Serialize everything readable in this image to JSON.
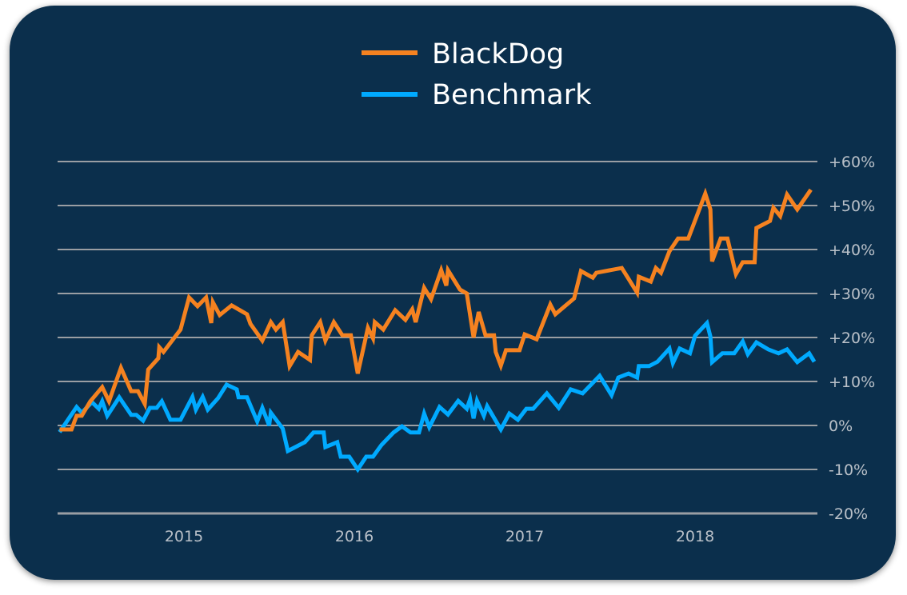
{
  "chart_data": {
    "type": "line",
    "title": "",
    "xlabel": "",
    "ylabel": "",
    "ylim": [
      -20,
      60
    ],
    "xlim": [
      2014.27,
      2018.7
    ],
    "grid": true,
    "legend_placement": "top-center",
    "y_ticks": [
      {
        "value": 60,
        "label": "+60%"
      },
      {
        "value": 50,
        "label": "+50%"
      },
      {
        "value": 40,
        "label": "+40%"
      },
      {
        "value": 30,
        "label": "+30%"
      },
      {
        "value": 20,
        "label": "+20%"
      },
      {
        "value": 10,
        "label": "+10%"
      },
      {
        "value": 0,
        "label": "0%"
      },
      {
        "value": -10,
        "label": "-10%"
      },
      {
        "value": -20,
        "label": "-20%"
      }
    ],
    "x_ticks": [
      {
        "value": 2015,
        "label": "2015"
      },
      {
        "value": 2016,
        "label": "2016"
      },
      {
        "value": 2017,
        "label": "2017"
      },
      {
        "value": 2018,
        "label": "2018"
      }
    ],
    "series": [
      {
        "name": "BlackDog",
        "color": "#f58220",
        "points": [
          [
            2014.27,
            -0.9
          ],
          [
            2014.34,
            -0.9
          ],
          [
            2014.37,
            2.2
          ],
          [
            2014.4,
            2.2
          ],
          [
            2014.45,
            5.5
          ],
          [
            2014.52,
            8.7
          ],
          [
            2014.56,
            5.5
          ],
          [
            2014.63,
            13.1
          ],
          [
            2014.69,
            7.8
          ],
          [
            2014.73,
            7.8
          ],
          [
            2014.77,
            4.9
          ],
          [
            2014.79,
            12.7
          ],
          [
            2014.85,
            15.3
          ],
          [
            2014.855,
            17.8
          ],
          [
            2014.88,
            16.7
          ],
          [
            2014.98,
            21.8
          ],
          [
            2015.03,
            29.1
          ],
          [
            2015.08,
            27.1
          ],
          [
            2015.13,
            29.1
          ],
          [
            2015.16,
            23.3
          ],
          [
            2015.17,
            28.0
          ],
          [
            2015.21,
            25.1
          ],
          [
            2015.28,
            27.3
          ],
          [
            2015.37,
            25.3
          ],
          [
            2015.39,
            23.1
          ],
          [
            2015.46,
            19.3
          ],
          [
            2015.51,
            23.5
          ],
          [
            2015.54,
            21.8
          ],
          [
            2015.58,
            23.5
          ],
          [
            2015.62,
            13.5
          ],
          [
            2015.67,
            16.7
          ],
          [
            2015.74,
            14.9
          ],
          [
            2015.75,
            20.5
          ],
          [
            2015.8,
            23.5
          ],
          [
            2015.83,
            19.3
          ],
          [
            2015.88,
            23.5
          ],
          [
            2015.93,
            20.5
          ],
          [
            2015.98,
            20.5
          ],
          [
            2016.02,
            11.8
          ],
          [
            2016.08,
            22.2
          ],
          [
            2016.11,
            19.8
          ],
          [
            2016.12,
            23.5
          ],
          [
            2016.17,
            21.8
          ],
          [
            2016.24,
            26.2
          ],
          [
            2016.3,
            24.0
          ],
          [
            2016.34,
            26.4
          ],
          [
            2016.36,
            23.5
          ],
          [
            2016.41,
            31.3
          ],
          [
            2016.45,
            28.7
          ],
          [
            2016.51,
            35.3
          ],
          [
            2016.54,
            31.8
          ],
          [
            2016.55,
            35.3
          ],
          [
            2016.62,
            30.9
          ],
          [
            2016.66,
            30.0
          ],
          [
            2016.7,
            20.0
          ],
          [
            2016.73,
            25.8
          ],
          [
            2016.77,
            20.5
          ],
          [
            2016.82,
            20.5
          ],
          [
            2016.83,
            16.7
          ],
          [
            2016.86,
            13.6
          ],
          [
            2016.89,
            17.1
          ],
          [
            2016.97,
            17.1
          ],
          [
            2017.0,
            20.7
          ],
          [
            2017.07,
            19.6
          ],
          [
            2017.15,
            27.5
          ],
          [
            2017.18,
            25.3
          ],
          [
            2017.29,
            28.9
          ],
          [
            2017.33,
            35.1
          ],
          [
            2017.4,
            33.6
          ],
          [
            2017.42,
            34.7
          ],
          [
            2017.57,
            35.8
          ],
          [
            2017.66,
            30.2
          ],
          [
            2017.67,
            33.8
          ],
          [
            2017.74,
            32.7
          ],
          [
            2017.77,
            35.8
          ],
          [
            2017.8,
            34.7
          ],
          [
            2017.85,
            39.6
          ],
          [
            2017.9,
            42.5
          ],
          [
            2017.96,
            42.5
          ],
          [
            2018.06,
            52.7
          ],
          [
            2018.09,
            49.1
          ],
          [
            2018.1,
            37.3
          ],
          [
            2018.15,
            42.5
          ],
          [
            2018.19,
            42.5
          ],
          [
            2018.24,
            34.4
          ],
          [
            2018.28,
            37.1
          ],
          [
            2018.35,
            37.1
          ],
          [
            2018.36,
            44.9
          ],
          [
            2018.44,
            46.5
          ],
          [
            2018.46,
            49.5
          ],
          [
            2018.5,
            47.6
          ],
          [
            2018.54,
            52.5
          ],
          [
            2018.6,
            49.1
          ],
          [
            2018.68,
            53.6
          ]
        ]
      },
      {
        "name": "Benchmark",
        "color": "#00aaff",
        "points": [
          [
            2014.27,
            -1.5
          ],
          [
            2014.37,
            4.2
          ],
          [
            2014.4,
            2.9
          ],
          [
            2014.46,
            5.3
          ],
          [
            2014.5,
            3.8
          ],
          [
            2014.52,
            5.5
          ],
          [
            2014.55,
            2.2
          ],
          [
            2014.62,
            6.4
          ],
          [
            2014.69,
            2.4
          ],
          [
            2014.72,
            2.4
          ],
          [
            2014.76,
            1.1
          ],
          [
            2014.8,
            4.0
          ],
          [
            2014.84,
            4.0
          ],
          [
            2014.87,
            5.5
          ],
          [
            2014.92,
            1.3
          ],
          [
            2014.98,
            1.3
          ],
          [
            2015.05,
            6.5
          ],
          [
            2015.07,
            3.6
          ],
          [
            2015.11,
            6.5
          ],
          [
            2015.14,
            3.6
          ],
          [
            2015.2,
            6.2
          ],
          [
            2015.25,
            9.3
          ],
          [
            2015.31,
            8.2
          ],
          [
            2015.32,
            6.4
          ],
          [
            2015.37,
            6.4
          ],
          [
            2015.43,
            0.9
          ],
          [
            2015.46,
            4.0
          ],
          [
            2015.5,
            0.0
          ],
          [
            2015.51,
            2.9
          ],
          [
            2015.58,
            -0.7
          ],
          [
            2015.61,
            -5.8
          ],
          [
            2015.71,
            -3.8
          ],
          [
            2015.76,
            -1.6
          ],
          [
            2015.82,
            -1.6
          ],
          [
            2015.83,
            -4.9
          ],
          [
            2015.9,
            -3.8
          ],
          [
            2015.92,
            -7.1
          ],
          [
            2015.97,
            -7.1
          ],
          [
            2016.02,
            -10.0
          ],
          [
            2016.07,
            -7.1
          ],
          [
            2016.11,
            -7.1
          ],
          [
            2016.16,
            -4.4
          ],
          [
            2016.23,
            -1.6
          ],
          [
            2016.28,
            -0.2
          ],
          [
            2016.33,
            -1.6
          ],
          [
            2016.38,
            -1.6
          ],
          [
            2016.41,
            2.7
          ],
          [
            2016.44,
            -0.4
          ],
          [
            2016.5,
            4.2
          ],
          [
            2016.55,
            2.5
          ],
          [
            2016.61,
            5.6
          ],
          [
            2016.66,
            3.8
          ],
          [
            2016.68,
            6.0
          ],
          [
            2016.7,
            1.6
          ],
          [
            2016.72,
            5.6
          ],
          [
            2016.76,
            2.2
          ],
          [
            2016.78,
            4.4
          ],
          [
            2016.86,
            -0.9
          ],
          [
            2016.91,
            2.7
          ],
          [
            2016.96,
            1.3
          ],
          [
            2017.01,
            3.8
          ],
          [
            2017.05,
            3.8
          ],
          [
            2017.13,
            7.3
          ],
          [
            2017.2,
            4.0
          ],
          [
            2017.27,
            8.2
          ],
          [
            2017.34,
            7.3
          ],
          [
            2017.44,
            11.3
          ],
          [
            2017.51,
            6.9
          ],
          [
            2017.55,
            10.9
          ],
          [
            2017.61,
            11.8
          ],
          [
            2017.66,
            10.9
          ],
          [
            2017.67,
            13.5
          ],
          [
            2017.73,
            13.5
          ],
          [
            2017.78,
            14.5
          ],
          [
            2017.85,
            17.5
          ],
          [
            2017.87,
            14.2
          ],
          [
            2017.91,
            17.5
          ],
          [
            2017.97,
            16.4
          ],
          [
            2018.0,
            20.4
          ],
          [
            2018.07,
            23.3
          ],
          [
            2018.09,
            20.2
          ],
          [
            2018.1,
            14.4
          ],
          [
            2018.16,
            16.4
          ],
          [
            2018.23,
            16.4
          ],
          [
            2018.28,
            19.1
          ],
          [
            2018.31,
            16.2
          ],
          [
            2018.36,
            18.9
          ],
          [
            2018.43,
            17.3
          ],
          [
            2018.49,
            16.4
          ],
          [
            2018.54,
            17.3
          ],
          [
            2018.6,
            14.4
          ],
          [
            2018.67,
            16.4
          ],
          [
            2018.7,
            14.5
          ]
        ]
      }
    ]
  },
  "legend": {
    "items": [
      {
        "label": "BlackDog",
        "color": "#f58220"
      },
      {
        "label": "Benchmark",
        "color": "#00aaff"
      }
    ]
  },
  "colors": {
    "background": "#0b2f4c",
    "grid": "#9a9ea3"
  }
}
